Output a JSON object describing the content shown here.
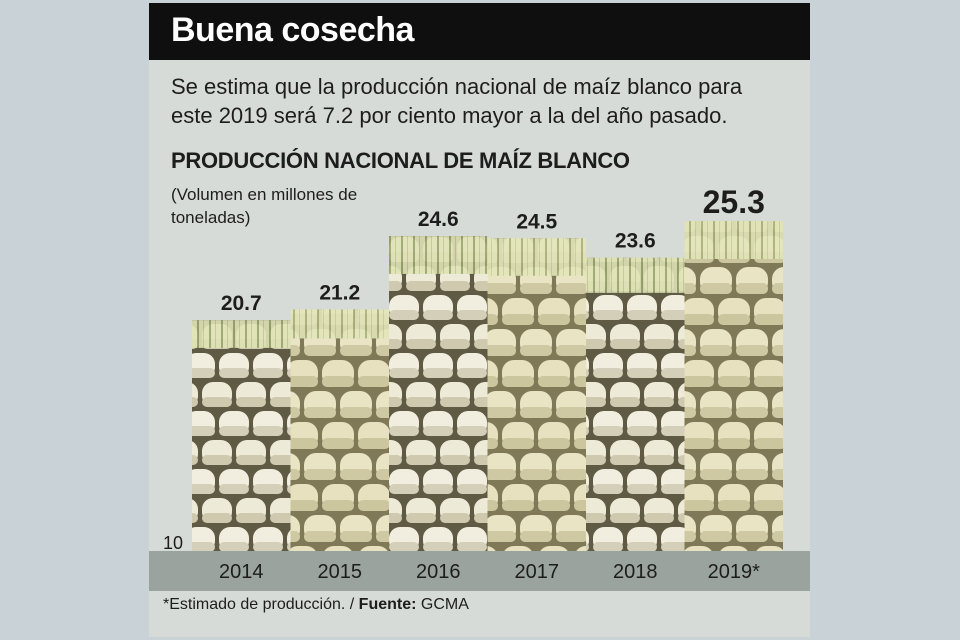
{
  "header": {
    "title": "Buena cosecha",
    "lede": "Se estima que la producción nacional de maíz blanco para este 2019 será 7.2 por ciento mayor a la del año pasado."
  },
  "chart_data": {
    "type": "bar",
    "title": "PRODUCCIÓN NACIONAL DE MAÍZ BLANCO",
    "ylabel": "(Volumen en millones de toneladas)",
    "categories": [
      "2014",
      "2015",
      "2016",
      "2017",
      "2018",
      "2019*"
    ],
    "values": [
      20.7,
      21.2,
      24.6,
      24.5,
      23.6,
      25.3
    ],
    "value_labels": [
      "20.7",
      "21.2",
      "24.6",
      "24.5",
      "23.6",
      "25.3"
    ],
    "y_tick_label": "10",
    "ylim": [
      10,
      26
    ],
    "highlight_index": 5,
    "grid": false,
    "legend": "none",
    "colors": {
      "kernel": "#f1eedf",
      "kernel_shadow": "#b9b49a",
      "kernel_gap": "#5e5a44",
      "husk": "#dfe3b6",
      "husk_stripe": "#9aa36c"
    }
  },
  "footer": {
    "note": "*Estimado de producción. / ",
    "source_label": "Fuente:",
    "source": " GCMA"
  }
}
